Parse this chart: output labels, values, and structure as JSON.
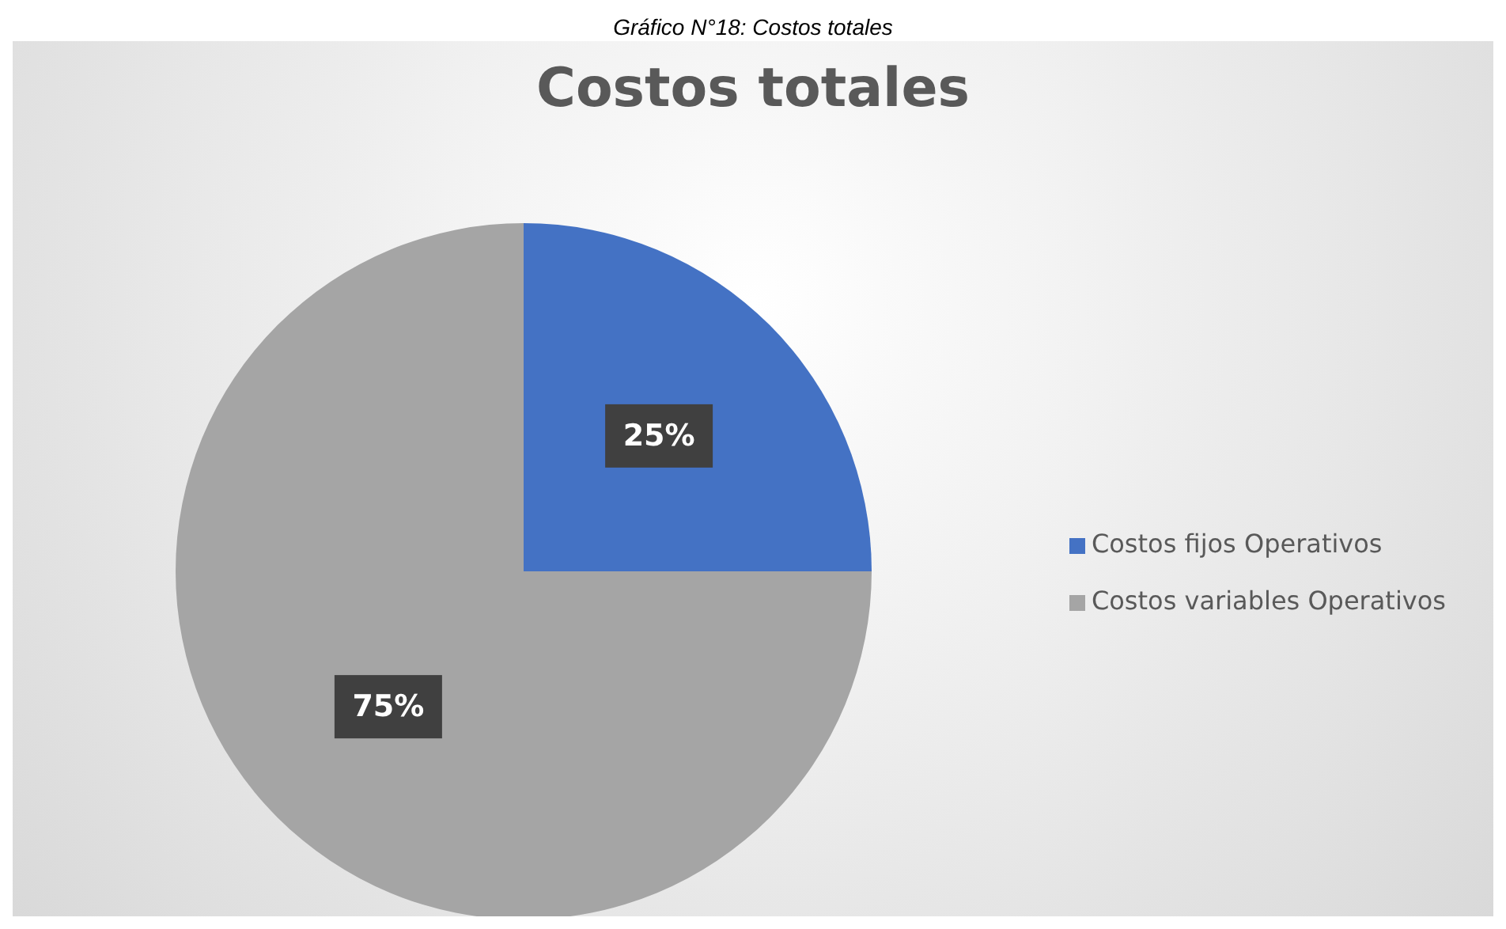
{
  "chart_data": {
    "type": "pie",
    "title": "Costos totales",
    "annotations": [
      "Gráfico N°18: Costos totales"
    ],
    "categories": [
      "Costos fijos Operativos",
      "Costos variables Operativos"
    ],
    "values": [
      25,
      75
    ],
    "colors": [
      "#4472c4",
      "#a5a5a5"
    ],
    "value_labels": [
      "25%",
      "75%"
    ],
    "legend": "right"
  }
}
